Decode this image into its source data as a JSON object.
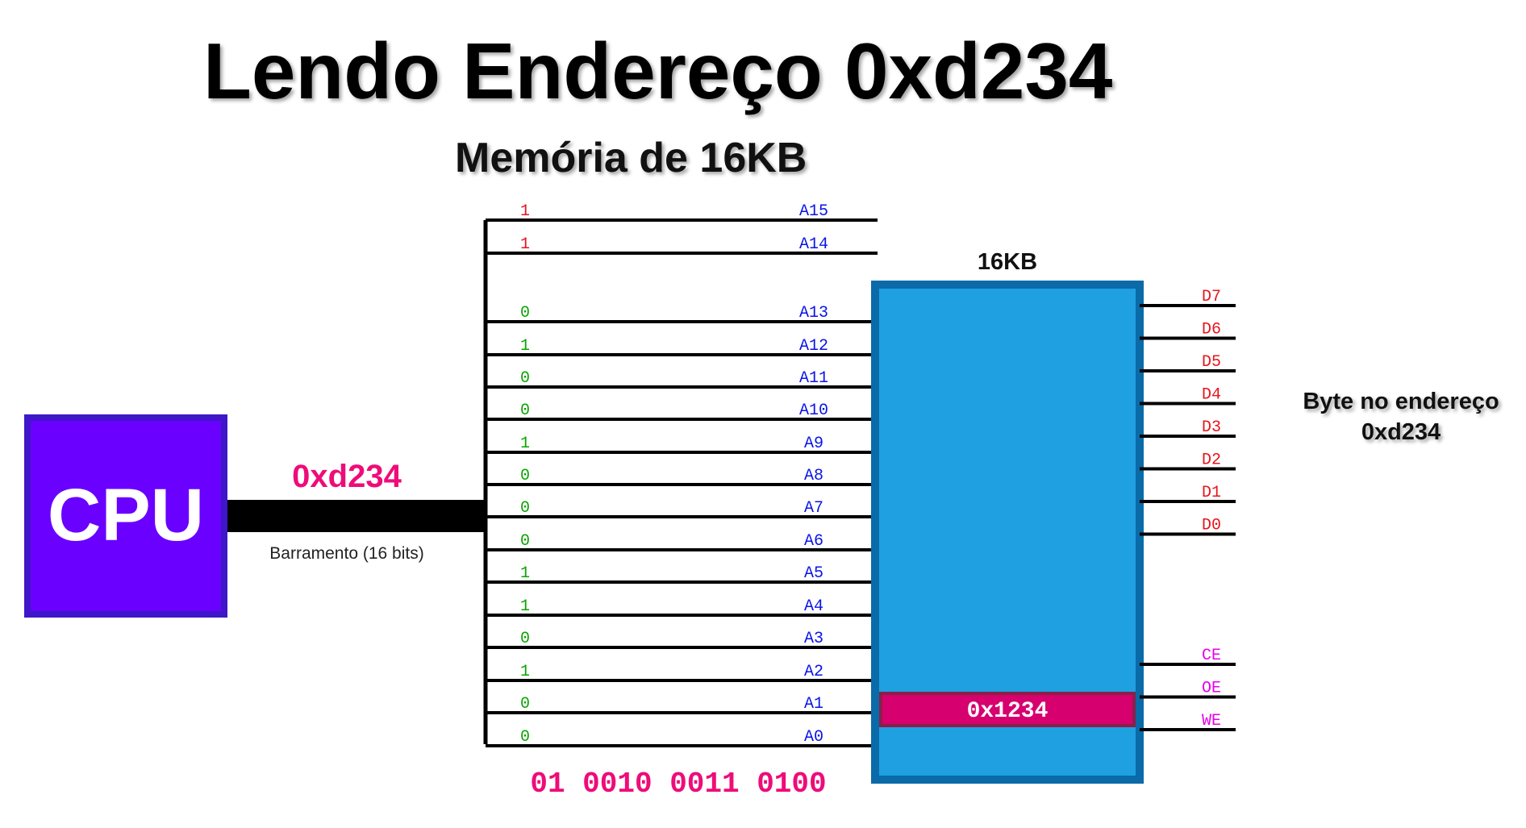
{
  "title": "Lendo Endereço 0xd234",
  "subtitle": "Memória de 16KB",
  "cpu": {
    "label": "CPU"
  },
  "bus": {
    "address": "0xd234",
    "label": "Barramento (16 bits)"
  },
  "memory": {
    "size_label": "16KB",
    "cell_value": "0x1234"
  },
  "output_label": {
    "line1": "Byte no endereço",
    "line2": "0xd234"
  },
  "binary_readout": "01 0010 0011 0100",
  "address_lines": [
    {
      "name": "A15",
      "bit": "1"
    },
    {
      "name": "A14",
      "bit": "1"
    },
    {
      "name": "A13",
      "bit": "0"
    },
    {
      "name": "A12",
      "bit": "1"
    },
    {
      "name": "A11",
      "bit": "0"
    },
    {
      "name": "A10",
      "bit": "0"
    },
    {
      "name": "A9",
      "bit": "1"
    },
    {
      "name": "A8",
      "bit": "0"
    },
    {
      "name": "A7",
      "bit": "0"
    },
    {
      "name": "A6",
      "bit": "0"
    },
    {
      "name": "A5",
      "bit": "1"
    },
    {
      "name": "A4",
      "bit": "1"
    },
    {
      "name": "A3",
      "bit": "0"
    },
    {
      "name": "A2",
      "bit": "1"
    },
    {
      "name": "A1",
      "bit": "0"
    },
    {
      "name": "A0",
      "bit": "0"
    }
  ],
  "data_lines": [
    "D7",
    "D6",
    "D5",
    "D4",
    "D3",
    "D2",
    "D1",
    "D0"
  ],
  "control_lines": [
    "CE",
    "OE",
    "WE"
  ],
  "colors": {
    "cpu_fill": "#6a00ff",
    "cpu_border": "#3f17c9",
    "memory_fill": "#1fa0e0",
    "memory_border": "#0b6aa8",
    "cell_fill": "#d6006f",
    "cell_border": "#8a1f4a",
    "address_pink": "#ee0c79",
    "bit_high_unused": "#e8141c",
    "bit_green": "#0aa400",
    "pin_blue": "#0a14e6",
    "data_red": "#e8141c",
    "control_magenta": "#e800e8"
  }
}
